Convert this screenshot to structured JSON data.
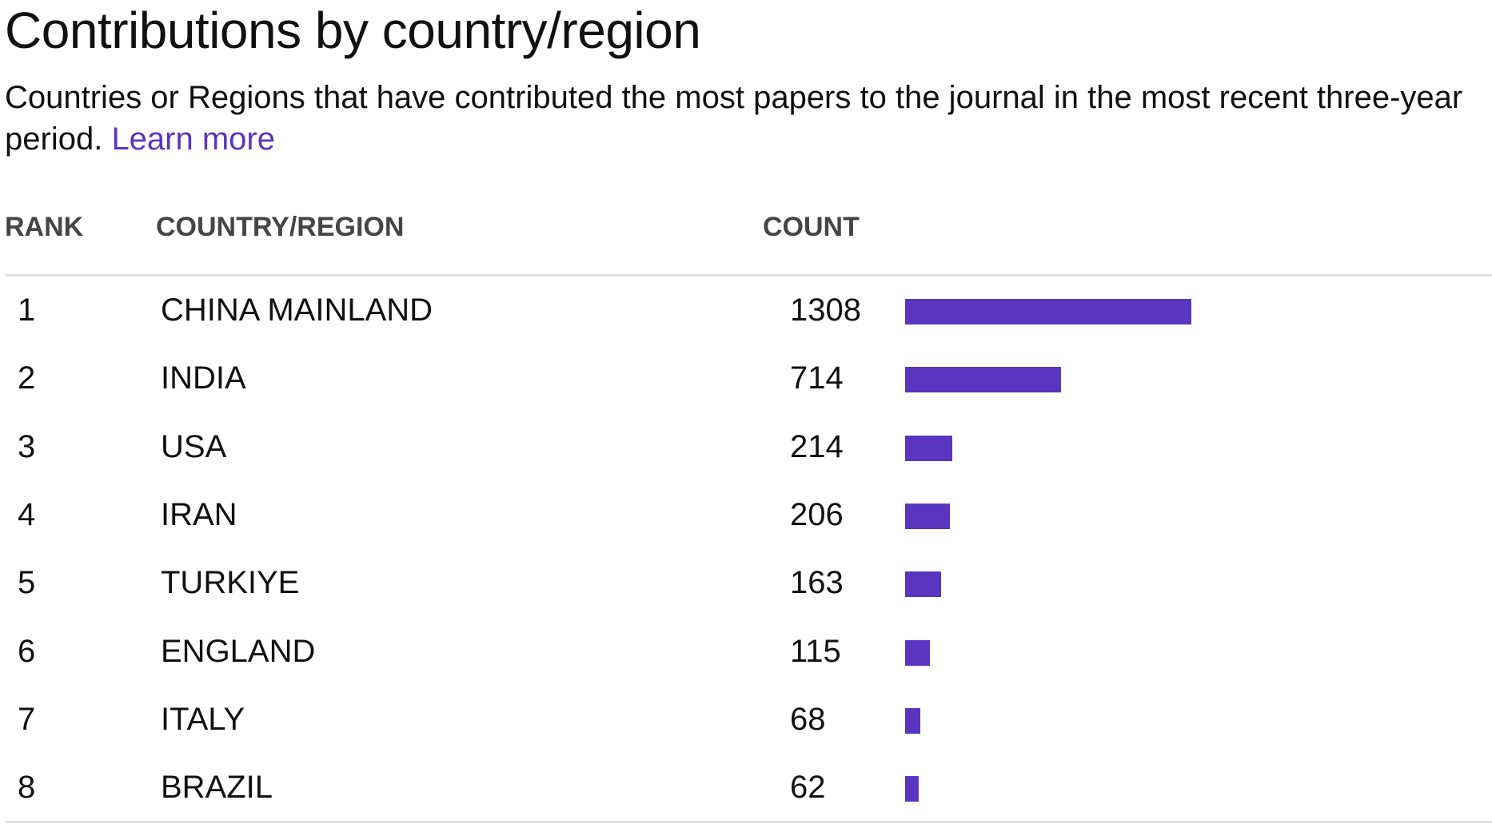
{
  "header": {
    "title": "Contributions by country/region",
    "description": "Countries or Regions that have contributed the most papers to the journal in the most recent three-year period.",
    "learn_more": "Learn more"
  },
  "table": {
    "columns": {
      "rank": "RANK",
      "country": "COUNTRY/REGION",
      "count": "COUNT"
    }
  },
  "colors": {
    "bar": "#5a35c0",
    "link": "#5a35c0"
  },
  "chart_data": {
    "type": "bar",
    "categories": [
      "CHINA MAINLAND",
      "INDIA",
      "USA",
      "IRAN",
      "TURKIYE",
      "ENGLAND",
      "ITALY",
      "BRAZIL"
    ],
    "ranks": [
      "1",
      "2",
      "3",
      "4",
      "5",
      "6",
      "7",
      "8"
    ],
    "values": [
      1308,
      714,
      214,
      206,
      163,
      115,
      68,
      62
    ],
    "xlabel": "",
    "ylabel": ""
  }
}
